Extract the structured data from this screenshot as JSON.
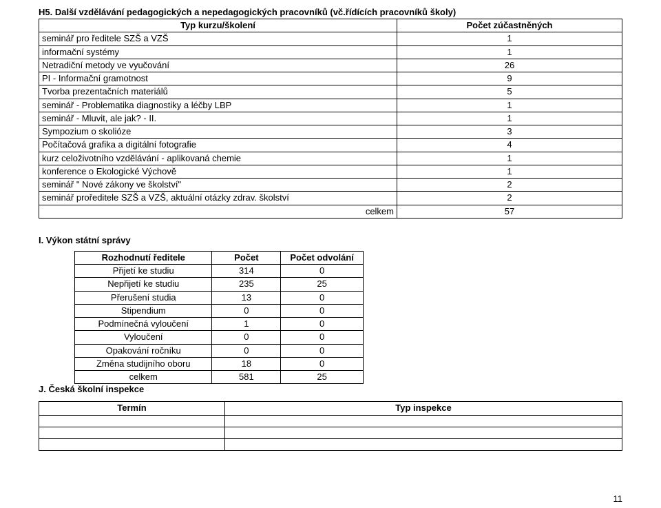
{
  "h5": {
    "heading": "H5.  Další vzdělávání pedagogických a nepedagogických pracovníků (vč.řídících pracovníků školy)",
    "col1": "Typ kurzu/školení",
    "col2": "Počet zúčastněných",
    "rows": [
      {
        "label": "seminář pro ředitele SZŠ a VZŠ",
        "val": "1"
      },
      {
        "label": "informační systémy",
        "val": "1"
      },
      {
        "label": "Netradiční metody ve vyučování",
        "val": "26"
      },
      {
        "label": "PI - Informační gramotnost",
        "val": "9"
      },
      {
        "label": "Tvorba prezentačních materiálů",
        "val": "5"
      },
      {
        "label": "seminář - Problematika diagnostiky a léčby LBP",
        "val": "1"
      },
      {
        "label": "seminář - Mluvit, ale jak? - II.",
        "val": "1"
      },
      {
        "label": "Sympozium o skolióze",
        "val": "3"
      },
      {
        "label": "Počítačová grafika a digitální fotografie",
        "val": "4"
      },
      {
        "label": "kurz celoživotního vzdělávání - aplikovaná chemie",
        "val": "1"
      },
      {
        "label": "konference o Ekologické Výchově",
        "val": "1"
      },
      {
        "label": "seminář \" Nové zákony ve školství\"",
        "val": "2"
      },
      {
        "label": "seminář proředitele SZŠ a VZŠ, aktuální otázky zdrav. školství",
        "val": "2"
      }
    ],
    "total_label": "celkem",
    "total_val": "57"
  },
  "i": {
    "heading": "I.   Výkon státní správy",
    "col1": "Rozhodnutí ředitele",
    "col2": "Počet",
    "col3": "Počet odvolání",
    "rows": [
      {
        "label": "Přijetí ke studiu",
        "a": "314",
        "b": "0"
      },
      {
        "label": "Nepřijetí ke studiu",
        "a": "235",
        "b": "25"
      },
      {
        "label": "Přerušení studia",
        "a": "13",
        "b": "0"
      },
      {
        "label": "Stipendium",
        "a": "0",
        "b": "0"
      },
      {
        "label": "Podmínečná vyloučení",
        "a": "1",
        "b": "0"
      },
      {
        "label": "Vyloučení",
        "a": "0",
        "b": "0"
      },
      {
        "label": "Opakování ročníku",
        "a": "0",
        "b": "0"
      },
      {
        "label": "Změna studijního oboru",
        "a": "18",
        "b": "0"
      }
    ],
    "total_label": "celkem",
    "total_a": "581",
    "total_b": "25"
  },
  "j": {
    "heading": "J.   Česká školní inspekce",
    "col1": "Termín",
    "col2": "Typ inspekce"
  },
  "page_number": "11"
}
